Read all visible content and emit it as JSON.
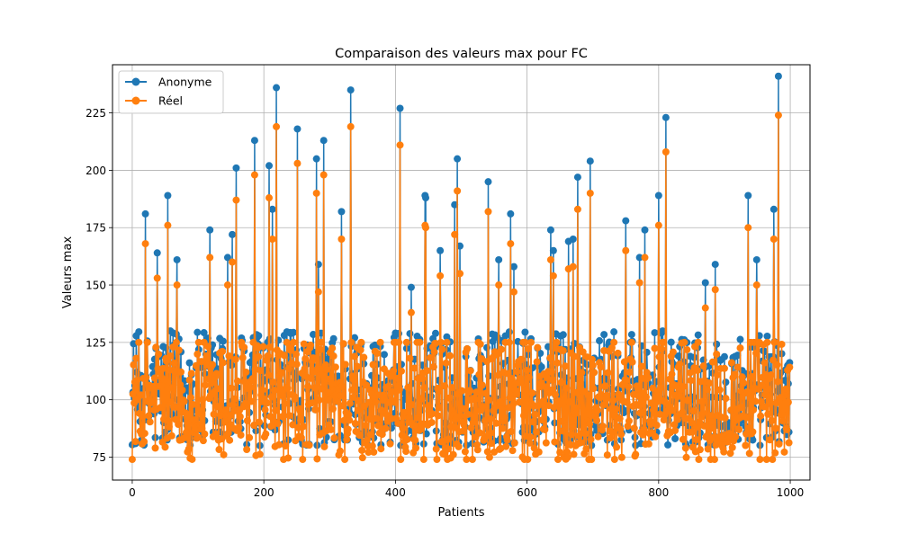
{
  "chart_data": {
    "type": "line",
    "title": "Comparaison des valeurs max pour FC",
    "xlabel": "Patients",
    "ylabel": "Valeurs max",
    "xlim": [
      -30,
      1030
    ],
    "ylim": [
      65,
      246
    ],
    "x_ticks": [
      0,
      200,
      400,
      600,
      800,
      1000
    ],
    "y_ticks": [
      75,
      100,
      125,
      150,
      175,
      200,
      225
    ],
    "grid": true,
    "legend_position": "top-left",
    "n_points": 1000,
    "series": [
      {
        "name": "Anonyme",
        "color": "#1f77b4",
        "marker": "circle",
        "baseline_range": [
          80,
          130
        ],
        "peaks": [
          [
            20,
            181
          ],
          [
            38,
            164
          ],
          [
            54,
            189
          ],
          [
            68,
            161
          ],
          [
            118,
            174
          ],
          [
            145,
            162
          ],
          [
            152,
            172
          ],
          [
            158,
            201
          ],
          [
            186,
            213
          ],
          [
            208,
            202
          ],
          [
            213,
            183
          ],
          [
            219,
            236
          ],
          [
            251,
            218
          ],
          [
            280,
            205
          ],
          [
            283,
            159
          ],
          [
            291,
            213
          ],
          [
            318,
            182
          ],
          [
            332,
            235
          ],
          [
            407,
            227
          ],
          [
            424,
            149
          ],
          [
            445,
            189
          ],
          [
            446,
            188
          ],
          [
            468,
            165
          ],
          [
            490,
            185
          ],
          [
            494,
            205
          ],
          [
            498,
            167
          ],
          [
            541,
            195
          ],
          [
            557,
            161
          ],
          [
            575,
            181
          ],
          [
            580,
            158
          ],
          [
            636,
            174
          ],
          [
            640,
            165
          ],
          [
            663,
            169
          ],
          [
            670,
            170
          ],
          [
            677,
            197
          ],
          [
            696,
            204
          ],
          [
            750,
            178
          ],
          [
            771,
            162
          ],
          [
            779,
            174
          ],
          [
            800,
            189
          ],
          [
            811,
            223
          ],
          [
            871,
            151
          ],
          [
            886,
            159
          ],
          [
            936,
            189
          ],
          [
            949,
            161
          ],
          [
            975,
            183
          ],
          [
            982,
            241
          ]
        ]
      },
      {
        "name": "Réel",
        "color": "#ff7f0e",
        "marker": "circle",
        "baseline_range": [
          74,
          125
        ],
        "peaks": [
          [
            20,
            168
          ],
          [
            38,
            153
          ],
          [
            54,
            176
          ],
          [
            68,
            150
          ],
          [
            118,
            162
          ],
          [
            145,
            150
          ],
          [
            152,
            160
          ],
          [
            158,
            187
          ],
          [
            186,
            198
          ],
          [
            208,
            188
          ],
          [
            213,
            170
          ],
          [
            219,
            219
          ],
          [
            251,
            203
          ],
          [
            280,
            190
          ],
          [
            283,
            147
          ],
          [
            291,
            198
          ],
          [
            318,
            170
          ],
          [
            332,
            219
          ],
          [
            407,
            211
          ],
          [
            424,
            138
          ],
          [
            445,
            176
          ],
          [
            446,
            175
          ],
          [
            468,
            154
          ],
          [
            490,
            172
          ],
          [
            494,
            191
          ],
          [
            498,
            155
          ],
          [
            541,
            182
          ],
          [
            557,
            150
          ],
          [
            575,
            168
          ],
          [
            580,
            147
          ],
          [
            636,
            161
          ],
          [
            640,
            154
          ],
          [
            663,
            157
          ],
          [
            670,
            158
          ],
          [
            677,
            183
          ],
          [
            696,
            190
          ],
          [
            750,
            165
          ],
          [
            771,
            151
          ],
          [
            779,
            162
          ],
          [
            800,
            176
          ],
          [
            811,
            208
          ],
          [
            871,
            140
          ],
          [
            886,
            148
          ],
          [
            936,
            175
          ],
          [
            949,
            150
          ],
          [
            975,
            170
          ],
          [
            982,
            224
          ]
        ]
      }
    ]
  }
}
